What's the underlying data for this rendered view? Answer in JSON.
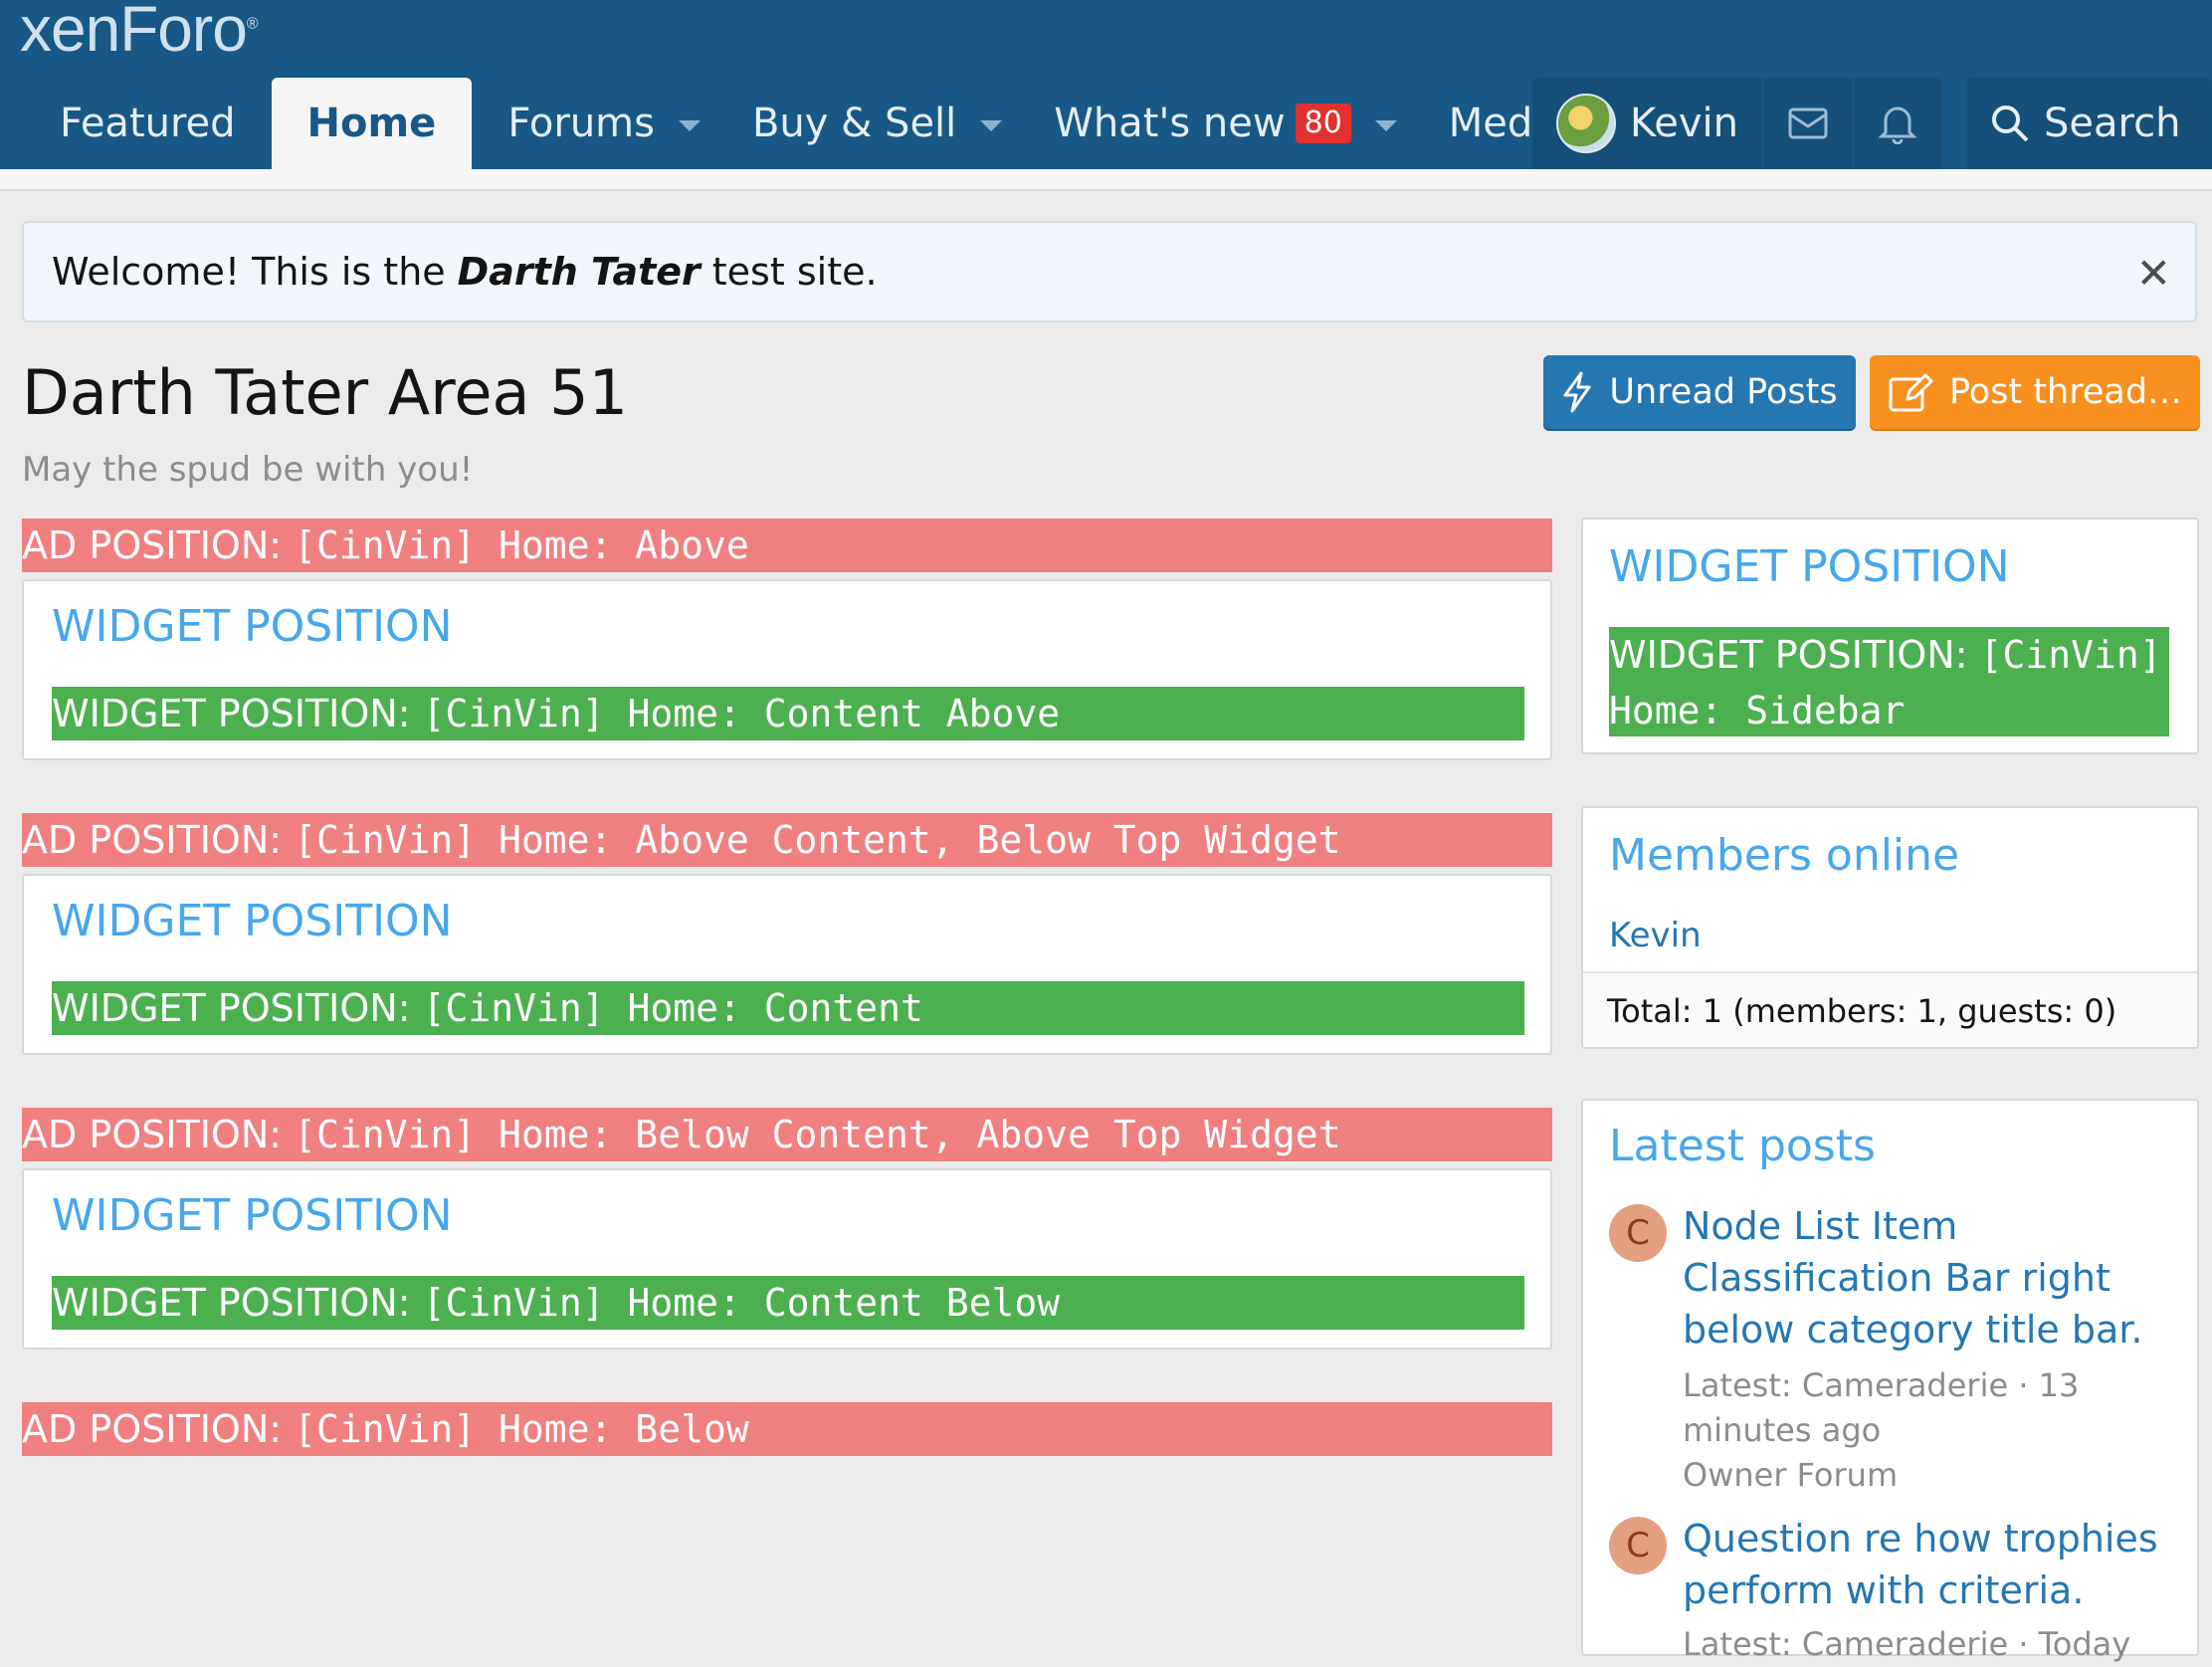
{
  "header": {
    "logo": "xenForo",
    "logo_mark": "®",
    "nav": [
      {
        "label": "Featured"
      },
      {
        "label": "Home"
      },
      {
        "label": "Forums"
      },
      {
        "label": "Buy & Sell"
      },
      {
        "label": "What's new",
        "badge": "80"
      },
      {
        "label": "Med"
      }
    ],
    "user": "Kevin",
    "search_label": "Search"
  },
  "notice": {
    "prefix": "Welcome! This is the",
    "site_name": "Darth Tater",
    "suffix": "test site."
  },
  "page": {
    "title": "Darth Tater Area 51",
    "description": "May the spud be with you!",
    "unread_button": "Unread Posts",
    "post_button": "Post thread…"
  },
  "main": {
    "ads": [
      {
        "prefix": "AD POSITION:",
        "code": "[CinVin] Home: Above"
      },
      {
        "prefix": "AD POSITION:",
        "code": "[CinVin] Home: Above Content, Below Top Widget"
      },
      {
        "prefix": "AD POSITION:",
        "code": "[CinVin] Home: Below Content, Above Top Widget"
      },
      {
        "prefix": "AD POSITION:",
        "code": "[CinVin] Home: Below"
      }
    ],
    "widgets": [
      {
        "title": "WIDGET POSITION",
        "prefix": "WIDGET POSITION:",
        "code": "[CinVin] Home: Content Above"
      },
      {
        "title": "WIDGET POSITION",
        "prefix": "WIDGET POSITION:",
        "code": "[CinVin] Home: Content"
      },
      {
        "title": "WIDGET POSITION",
        "prefix": "WIDGET POSITION:",
        "code": "[CinVin] Home: Content Below"
      }
    ]
  },
  "sidebar": {
    "widget": {
      "title": "WIDGET POSITION",
      "prefix": "WIDGET POSITION:",
      "code1": "[CinVin]",
      "code2": "Home: Sidebar"
    },
    "members": {
      "title": "Members online",
      "member": "Kevin",
      "total": "Total: 1 (members: 1, guests: 0)"
    },
    "latest": {
      "title": "Latest posts",
      "posts": [
        {
          "avatar": "C",
          "title": "Node List Item Classification Bar right below category title bar.",
          "meta1": "Latest: Cameraderie · 13 minutes ago",
          "forum": "Owner Forum"
        },
        {
          "avatar": "C",
          "title": "Question re how trophies perform with criteria.",
          "meta1": "Latest: Cameraderie · Today"
        }
      ]
    }
  },
  "colors": {
    "header_bg": "#185886",
    "link": "#47a7eb",
    "ad_bg": "#f08080",
    "widget_bg": "#4caf50",
    "unread_btn": "#2577b1",
    "post_btn": "#f7901e",
    "badge": "#e03030"
  }
}
